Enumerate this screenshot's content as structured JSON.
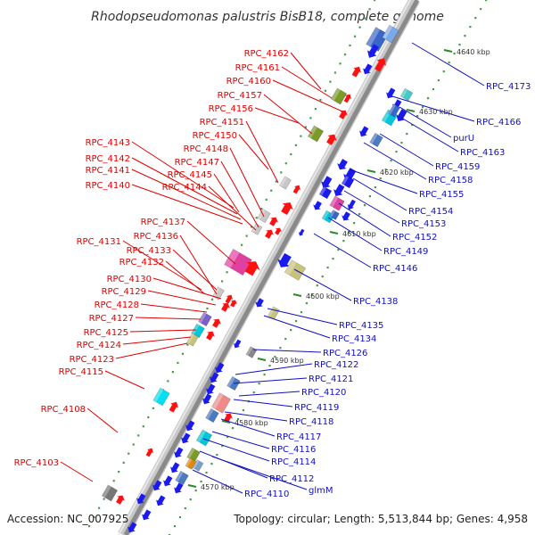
{
  "title": "Rhodopseudomonas palustris BisB18, complete genome",
  "footer": {
    "accession": "Accession: NC_007925",
    "topology": "Topology: circular; Length: 5,513,844 bp; Genes: 4,958"
  },
  "colors": {
    "left_label": "#e00000",
    "right_label": "#1010c0",
    "backbone": "#8a8a8a",
    "forward_gene": "#ff1010",
    "reverse_gene": "#1a1aee",
    "tick": "#2a8a2a"
  },
  "ticks": [
    "4640 kbp",
    "4630 kbp",
    "4620 kbp",
    "4610 kbp",
    "4600 kbp",
    "4590 kbp",
    "4580 kbp",
    "4570 kbp"
  ],
  "left_labels": [
    "RPC_4162",
    "RPC_4161",
    "RPC_4160",
    "RPC_4157",
    "RPC_4156",
    "RPC_4151",
    "RPC_4150",
    "RPC_4148",
    "RPC_4147",
    "RPC_4145",
    "RPC_4144",
    "RPC_4143",
    "RPC_4142",
    "RPC_4141",
    "RPC_4140",
    "RPC_4137",
    "RPC_4136",
    "RPC_4133",
    "RPC_4132",
    "RPC_4131",
    "RPC_4130",
    "RPC_4129",
    "RPC_4128",
    "RPC_4127",
    "RPC_4125",
    "RPC_4124",
    "RPC_4123",
    "RPC_4115",
    "RPC_4108",
    "RPC_4103"
  ],
  "right_labels": [
    "RPC_4173",
    "RPC_4166",
    "purU",
    "RPC_4163",
    "RPC_4159",
    "RPC_4158",
    "RPC_4155",
    "RPC_4154",
    "RPC_4153",
    "RPC_4152",
    "RPC_4149",
    "RPC_4146",
    "RPC_4138",
    "RPC_4135",
    "RPC_4134",
    "RPC_4126",
    "RPC_4122",
    "RPC_4121",
    "RPC_4120",
    "RPC_4119",
    "RPC_4118",
    "RPC_4117",
    "RPC_4116",
    "RPC_4114",
    "RPC_4112",
    "glmM",
    "RPC_4110"
  ]
}
